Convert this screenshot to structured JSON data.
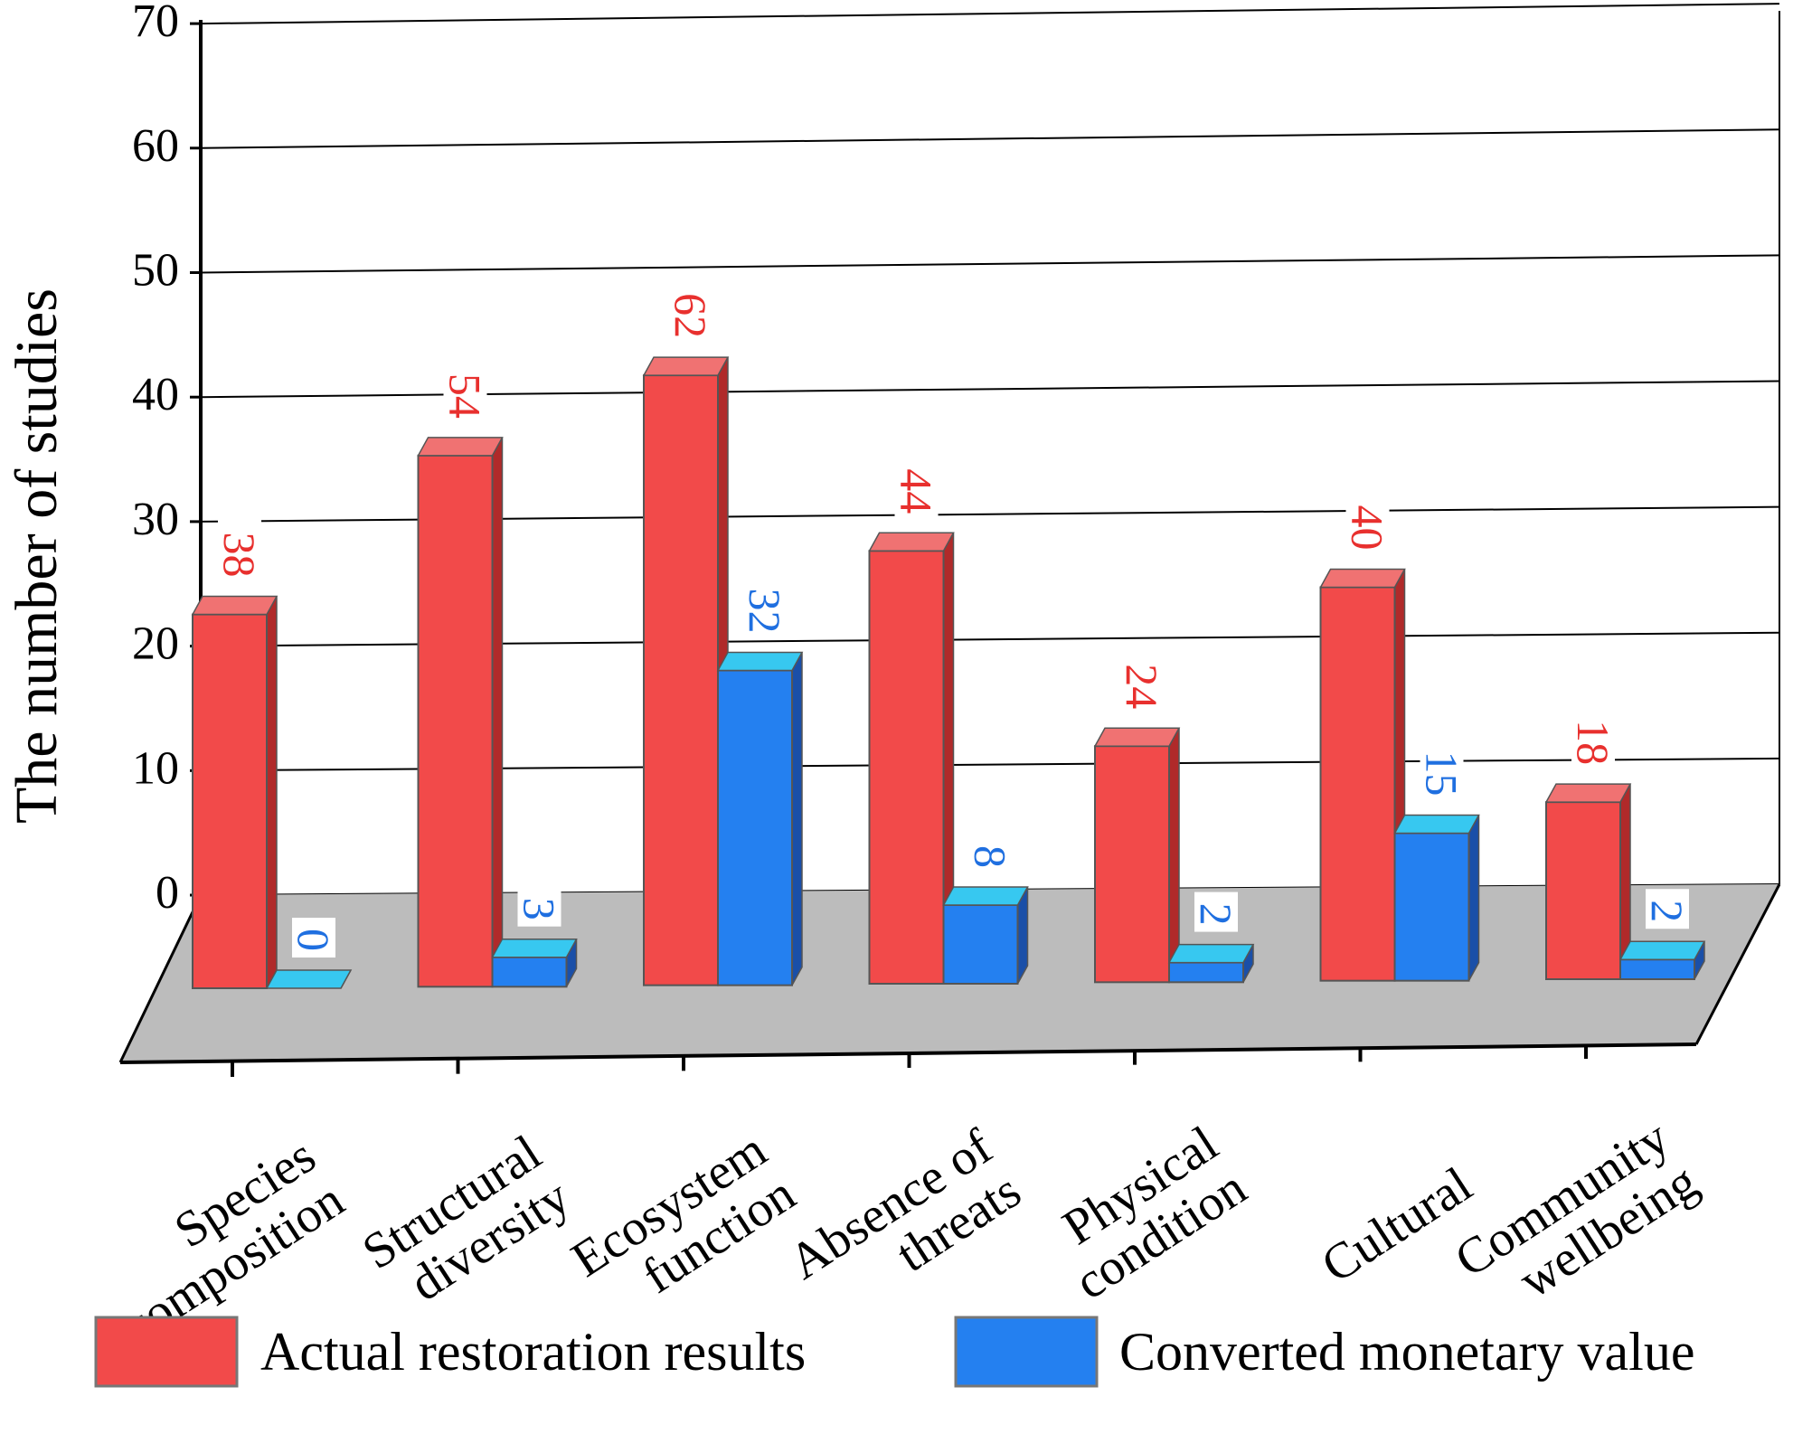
{
  "chart_data": {
    "type": "bar",
    "style": "3d-clustered-column",
    "title": "",
    "xlabel": "",
    "ylabel": "The number of studies",
    "ylim": [
      0,
      70
    ],
    "yticks": [
      "0",
      "10",
      "20",
      "30",
      "40",
      "50",
      "60",
      "70"
    ],
    "grid": true,
    "legend_position": "bottom",
    "categories": [
      [
        "Species",
        "composition"
      ],
      [
        "Structural",
        "diversity"
      ],
      [
        "Ecosystem",
        "function"
      ],
      [
        "Absence of",
        "threats"
      ],
      [
        "Physical",
        "condition"
      ],
      [
        "Cultural"
      ],
      [
        "Community",
        "wellbeing"
      ]
    ],
    "series": [
      {
        "name": "Actual restoration results",
        "color": "#f24a4a",
        "top_color": "#f07272",
        "side_color": "#b02a2a",
        "label_color": "#e8302e",
        "values": [
          38,
          54,
          62,
          44,
          24,
          40,
          18
        ],
        "labels": [
          "38",
          "54",
          "62",
          "44",
          "24",
          "40",
          "18"
        ]
      },
      {
        "name": "Converted monetary value",
        "color": "#2480f0",
        "top_color": "#37c8f0",
        "side_color": "#1a4fa8",
        "label_color": "#1f6fe0",
        "values": [
          0,
          3,
          32,
          8,
          2,
          15,
          2
        ],
        "labels": [
          "0",
          "3",
          "32",
          "8",
          "2",
          "15",
          "2"
        ]
      }
    ]
  }
}
